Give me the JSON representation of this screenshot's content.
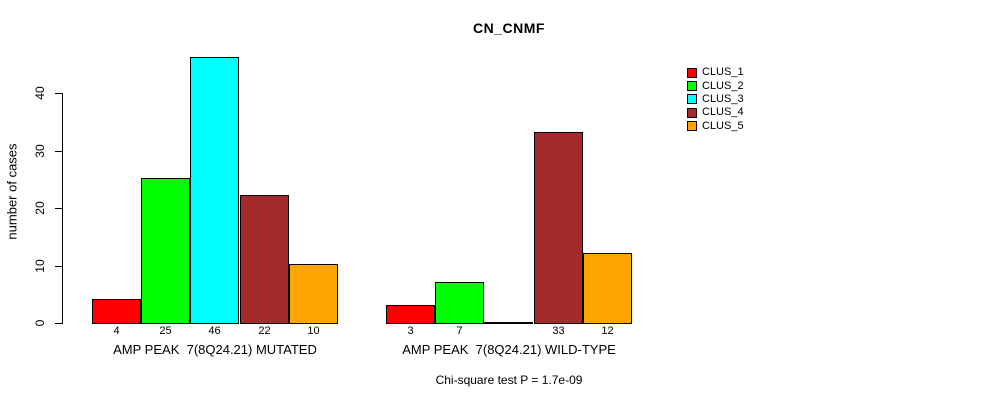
{
  "title": "CN_CNMF",
  "footer": "Chi-square test P = 1.7e-09",
  "chart_data": {
    "type": "bar",
    "title": "CN_CNMF",
    "xlabel": "",
    "ylabel": "number of cases",
    "ylim": [
      0,
      46
    ],
    "yticks": [
      0,
      10,
      20,
      30,
      40
    ],
    "grid": false,
    "legend_position": "right-outside-top",
    "categories": [
      "AMP PEAK  7(8Q24.21) MUTATED",
      "AMP PEAK  7(8Q24.21) WILD-TYPE"
    ],
    "series": [
      {
        "name": "CLUS_1",
        "color": "#FF0000",
        "values": [
          4,
          3
        ]
      },
      {
        "name": "CLUS_2",
        "color": "#00FF00",
        "values": [
          25,
          7
        ]
      },
      {
        "name": "CLUS_3",
        "color": "#00FFFF",
        "values": [
          46,
          0
        ]
      },
      {
        "name": "CLUS_4",
        "color": "#A52A2A",
        "values": [
          22,
          33
        ]
      },
      {
        "name": "CLUS_5",
        "color": "#FFA500",
        "values": [
          10,
          12
        ]
      }
    ],
    "value_labels": [
      [
        "4",
        "25",
        "46",
        "22",
        "10"
      ],
      [
        "3",
        "7",
        "",
        "33",
        "12"
      ]
    ],
    "annotation": "Chi-square test P = 1.7e-09"
  }
}
